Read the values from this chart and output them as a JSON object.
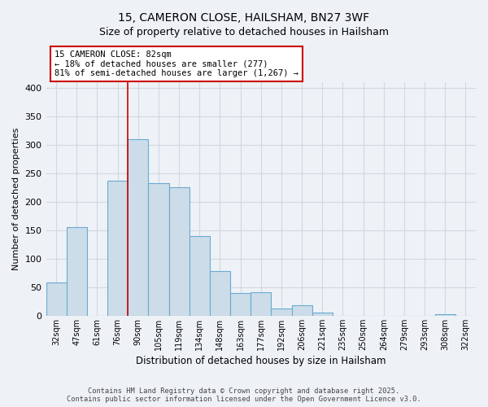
{
  "title_line1": "15, CAMERON CLOSE, HAILSHAM, BN27 3WF",
  "title_line2": "Size of property relative to detached houses in Hailsham",
  "xlabel": "Distribution of detached houses by size in Hailsham",
  "ylabel": "Number of detached properties",
  "bar_labels": [
    "32sqm",
    "47sqm",
    "61sqm",
    "76sqm",
    "90sqm",
    "105sqm",
    "119sqm",
    "134sqm",
    "148sqm",
    "163sqm",
    "177sqm",
    "192sqm",
    "206sqm",
    "221sqm",
    "235sqm",
    "250sqm",
    "264sqm",
    "279sqm",
    "293sqm",
    "308sqm",
    "322sqm"
  ],
  "bar_values": [
    58,
    155,
    0,
    237,
    310,
    233,
    225,
    140,
    78,
    40,
    42,
    13,
    19,
    6,
    0,
    0,
    0,
    0,
    0,
    3,
    0
  ],
  "bar_color": "#ccdce8",
  "bar_edge_color": "#6aaad4",
  "vline_color": "#cc0000",
  "vline_x_index": 3.5,
  "annotation_title": "15 CAMERON CLOSE: 82sqm",
  "annotation_line1": "← 18% of detached houses are smaller (277)",
  "annotation_line2": "81% of semi-detached houses are larger (1,267) →",
  "annotation_box_color": "#ffffff",
  "annotation_box_edge": "#cc0000",
  "ylim": [
    0,
    410
  ],
  "yticks": [
    0,
    50,
    100,
    150,
    200,
    250,
    300,
    350,
    400
  ],
  "grid_color": "#d0d8e0",
  "footer_line1": "Contains HM Land Registry data © Crown copyright and database right 2025.",
  "footer_line2": "Contains public sector information licensed under the Open Government Licence v3.0.",
  "bg_color": "#eef2f7",
  "title_fontsize": 10,
  "subtitle_fontsize": 9
}
